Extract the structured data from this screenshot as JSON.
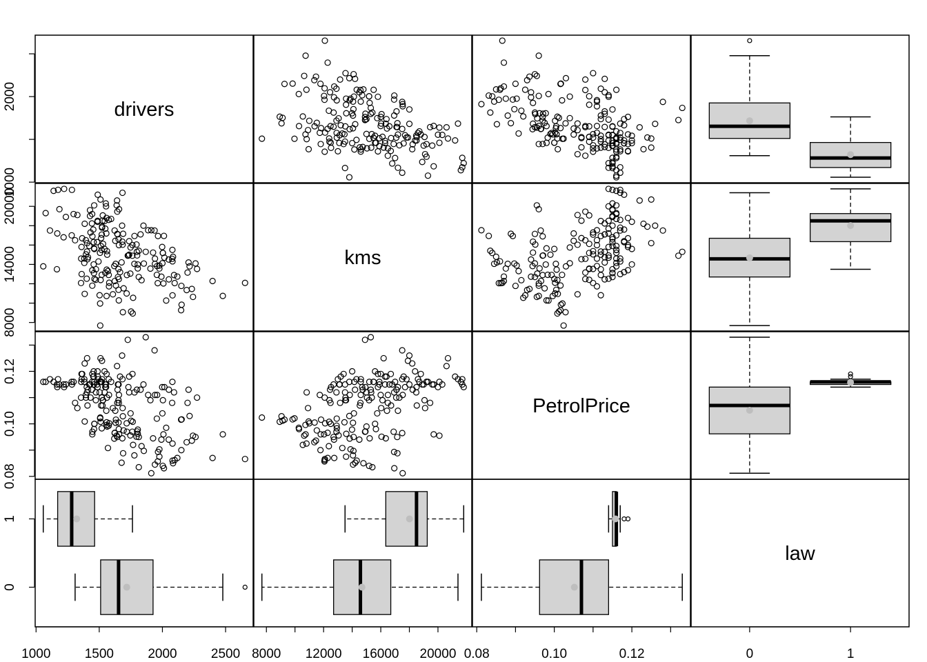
{
  "chart_data": {
    "type": "scatter-matrix",
    "grid": false,
    "legend": "none",
    "colors": {
      "points": "#000000",
      "box_fill": "#d3d3d3",
      "mean_point": "#bebebe"
    },
    "variables": [
      {
        "name": "drivers",
        "axis_range": [
          993,
          2718
        ],
        "ticks": [
          1000,
          1500,
          2000,
          2500
        ],
        "bottom_labels": [
          "1000",
          "1500",
          "2000",
          "2500"
        ],
        "left_labels": [
          "1000",
          "",
          "2000",
          ""
        ],
        "values": [
          1687,
          1508,
          1507,
          1385,
          1632,
          1511,
          1559,
          1630,
          1579,
          1653,
          2152,
          2148,
          1752,
          1765,
          1717,
          1558,
          1575,
          1520,
          1805,
          1800,
          1719,
          2008,
          2242,
          2478,
          2030,
          1655,
          1693,
          1623,
          1805,
          1746,
          1795,
          1926,
          1619,
          1992,
          2233,
          2192,
          2080,
          1768,
          1835,
          1569,
          1976,
          1853,
          1965,
          1689,
          1778,
          1976,
          2397,
          2654,
          2097,
          1963,
          1677,
          1941,
          2003,
          1813,
          2012,
          1912,
          2084,
          2080,
          2118,
          2150,
          1608,
          1503,
          1548,
          1382,
          1731,
          1798,
          1779,
          1887,
          2004,
          2077,
          2092,
          2051,
          1577,
          1356,
          1652,
          1382,
          1519,
          1421,
          1442,
          1543,
          1656,
          1561,
          1905,
          2199,
          1473,
          1655,
          1407,
          1395,
          1530,
          1309,
          1526,
          1327,
          1627,
          1748,
          1958,
          2274,
          1648,
          1401,
          1411,
          1403,
          1394,
          1520,
          1528,
          1643,
          1515,
          1685,
          2000,
          2215,
          1956,
          1462,
          1563,
          1459,
          1446,
          1622,
          1657,
          1638,
          1643,
          1683,
          2050,
          2262,
          1813,
          1445,
          1762,
          1461,
          1556,
          1431,
          1427,
          1554,
          1645,
          1653,
          2016,
          2207,
          1665,
          1361,
          1506,
          1360,
          1453,
          1522,
          1460,
          1552,
          1548,
          1827,
          1737,
          1941,
          1474,
          1458,
          1542,
          1404,
          1522,
          1385,
          1641,
          1510,
          1681,
          1938,
          1868,
          1726,
          1456,
          1445,
          1456,
          1365,
          1487,
          1558,
          1488,
          1684,
          1594,
          1850,
          1998,
          2079,
          1494,
          1057,
          1218,
          1168,
          1236,
          1076,
          1174,
          1139,
          1427,
          1487,
          1483,
          1513,
          1357,
          1165,
          1282,
          1110,
          1297,
          1185,
          1222,
          1284,
          1444,
          1575,
          1737,
          1763
        ]
      },
      {
        "name": "kms",
        "axis_range": [
          7120,
          22365
        ],
        "ticks": [
          8000,
          10000,
          12000,
          14000,
          16000,
          18000,
          20000
        ],
        "bottom_labels": [
          "8000",
          "",
          "12000",
          "",
          "16000",
          "",
          "20000"
        ],
        "left_labels": [
          "8000",
          "",
          "",
          "14000",
          "",
          "",
          "20000"
        ],
        "values": [
          9059,
          7685,
          9963,
          10955,
          11823,
          12391,
          13460,
          14055,
          12106,
          11372,
          9834,
          9267,
          9130,
          8933,
          11000,
          10733,
          12912,
          12926,
          13990,
          14926,
          12900,
          12034,
          10643,
          10742,
          10266,
          10281,
          11527,
          12281,
          13587,
          13049,
          16055,
          15220,
          13824,
          12729,
          11467,
          11351,
          10803,
          10548,
          12368,
          13311,
          13885,
          14088,
          16932,
          17164,
          14055,
          13573,
          12285,
          12089,
          12071,
          12064,
          14211,
          14061,
          15184,
          15411,
          16945,
          17530,
          14785,
          14318,
          12744,
          11781,
          10911,
          10816,
          13126,
          14151,
          14920,
          15301,
          16936,
          17532,
          15183,
          14576,
          12898,
          12452,
          11735,
          12076,
          13522,
          14608,
          15491,
          15906,
          18232,
          18480,
          15993,
          15370,
          13568,
          13155,
          12407,
          12485,
          14534,
          15036,
          16120,
          16493,
          18520,
          19101,
          16434,
          15750,
          13829,
          13534,
          12698,
          12521,
          14740,
          15328,
          16500,
          17080,
          19060,
          19450,
          16720,
          16030,
          14120,
          13800,
          12920,
          12500,
          15000,
          15660,
          16900,
          17500,
          19700,
          20100,
          17150,
          16350,
          14500,
          14100,
          12700,
          11800,
          14900,
          15600,
          17200,
          17300,
          19600,
          20000,
          17100,
          16600,
          14700,
          14200,
          13200,
          13000,
          15200,
          15800,
          17600,
          17800,
          20100,
          20300,
          17700,
          17100,
          15000,
          14600,
          13500,
          13100,
          15600,
          16200,
          17900,
          18200,
          20600,
          20700,
          18000,
          17500,
          15300,
          14900,
          14000,
          13400,
          16300,
          16700,
          18400,
          18800,
          21200,
          21400,
          18700,
          18000,
          15800,
          15500,
          14300,
          13800,
          16800,
          17200,
          18900,
          19300,
          21700,
          21600,
          19000,
          18500,
          16300,
          15900,
          14600,
          13500,
          17000,
          17500,
          19200,
          19700,
          21800,
          21700,
          19200,
          18600,
          16400,
          16000
        ]
      },
      {
        "name": "PetrolPrice",
        "axis_range": [
          0.0789,
          0.1351
        ],
        "ticks": [
          0.08,
          0.09,
          0.1,
          0.11,
          0.12,
          0.13
        ],
        "bottom_labels": [
          "0.08",
          "",
          "0.10",
          "",
          "0.12",
          ""
        ],
        "left_labels": [
          "0.08",
          "",
          "0.10",
          "",
          "0.12",
          ""
        ],
        "values": [
          0.1029,
          0.1024,
          0.1021,
          0.1009,
          0.1016,
          0.1008,
          0.1006,
          0.1004,
          0.1002,
          0.1005,
          0.1017,
          0.1016,
          0.1012,
          0.1008,
          0.1002,
          0.0996,
          0.0993,
          0.0983,
          0.0978,
          0.0971,
          0.097,
          0.096,
          0.0955,
          0.096,
          0.0985,
          0.098,
          0.0975,
          0.0966,
          0.0962,
          0.0956,
          0.0951,
          0.0945,
          0.0944,
          0.094,
          0.0936,
          0.093,
          0.0925,
          0.092,
          0.0915,
          0.0908,
          0.0903,
          0.0897,
          0.0893,
          0.0888,
          0.088,
          0.0875,
          0.087,
          0.0866,
          0.0862,
          0.0857,
          0.0852,
          0.0845,
          0.084,
          0.0835,
          0.0831,
          0.0812,
          0.085,
          0.086,
          0.087,
          0.09,
          0.106,
          0.112,
          0.115,
          0.116,
          0.114,
          0.113,
          0.112,
          0.111,
          0.109,
          0.108,
          0.112,
          0.113,
          0.111,
          0.11,
          0.109,
          0.117,
          0.116,
          0.115,
          0.113,
          0.112,
          0.111,
          0.11,
          0.109,
          0.108,
          0.109,
          0.108,
          0.107,
          0.11,
          0.109,
          0.108,
          0.107,
          0.106,
          0.105,
          0.104,
          0.111,
          0.11,
          0.115,
          0.114,
          0.113,
          0.112,
          0.111,
          0.11,
          0.109,
          0.108,
          0.107,
          0.106,
          0.104,
          0.103,
          0.102,
          0.1,
          0.099,
          0.098,
          0.097,
          0.0965,
          0.096,
          0.0955,
          0.095,
          0.0945,
          0.094,
          0.095,
          0.095,
          0.096,
          0.097,
          0.1,
          0.105,
          0.11,
          0.115,
          0.114,
          0.113,
          0.115,
          0.114,
          0.113,
          0.118,
          0.117,
          0.116,
          0.119,
          0.118,
          0.117,
          0.116,
          0.115,
          0.114,
          0.113,
          0.112,
          0.111,
          0.112,
          0.115,
          0.12,
          0.125,
          0.124,
          0.123,
          0.122,
          0.125,
          0.126,
          0.128,
          0.133,
          0.132,
          0.12,
          0.119,
          0.118,
          0.119,
          0.12,
          0.119,
          0.118,
          0.117,
          0.116,
          0.115,
          0.114,
          0.116,
          0.117,
          0.116,
          0.115,
          0.114,
          0.115,
          0.116,
          0.117,
          0.116,
          0.115,
          0.114,
          0.115,
          0.116,
          0.116,
          0.115,
          0.116,
          0.117,
          0.116,
          0.115,
          0.114,
          0.115,
          0.116,
          0.117,
          0.118,
          0.119
        ]
      },
      {
        "name": "law",
        "axis_range": [
          -0.58,
          1.58
        ],
        "ticks": [
          0,
          1
        ],
        "bottom_labels": [
          "0",
          "1"
        ],
        "left_labels": [
          "0",
          "1"
        ],
        "values": [
          0,
          0,
          0,
          0,
          0,
          0,
          0,
          0,
          0,
          0,
          0,
          0,
          0,
          0,
          0,
          0,
          0,
          0,
          0,
          0,
          0,
          0,
          0,
          0,
          0,
          0,
          0,
          0,
          0,
          0,
          0,
          0,
          0,
          0,
          0,
          0,
          0,
          0,
          0,
          0,
          0,
          0,
          0,
          0,
          0,
          0,
          0,
          0,
          0,
          0,
          0,
          0,
          0,
          0,
          0,
          0,
          0,
          0,
          0,
          0,
          0,
          0,
          0,
          0,
          0,
          0,
          0,
          0,
          0,
          0,
          0,
          0,
          0,
          0,
          0,
          0,
          0,
          0,
          0,
          0,
          0,
          0,
          0,
          0,
          0,
          0,
          0,
          0,
          0,
          0,
          0,
          0,
          0,
          0,
          0,
          0,
          0,
          0,
          0,
          0,
          0,
          0,
          0,
          0,
          0,
          0,
          0,
          0,
          0,
          0,
          0,
          0,
          0,
          0,
          0,
          0,
          0,
          0,
          0,
          0,
          0,
          0,
          0,
          0,
          0,
          0,
          0,
          0,
          0,
          0,
          0,
          0,
          0,
          0,
          0,
          0,
          0,
          0,
          0,
          0,
          0,
          0,
          0,
          0,
          0,
          0,
          0,
          0,
          0,
          0,
          0,
          0,
          0,
          0,
          0,
          0,
          0,
          0,
          0,
          0,
          0,
          0,
          0,
          0,
          0,
          0,
          0,
          0,
          0,
          1,
          1,
          1,
          1,
          1,
          1,
          1,
          1,
          1,
          1,
          1,
          1,
          1,
          1,
          1,
          1,
          1,
          1,
          1,
          1,
          1,
          1,
          1
        ]
      }
    ]
  }
}
